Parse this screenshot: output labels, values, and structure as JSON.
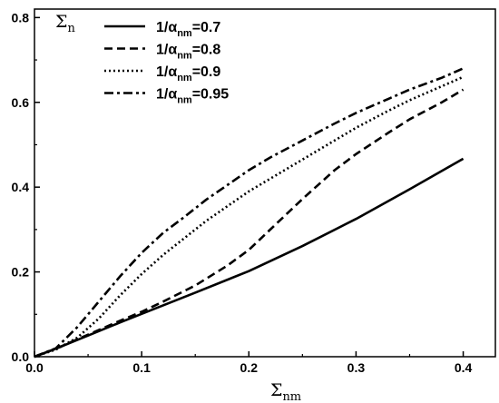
{
  "chart_data": {
    "type": "line",
    "xlabel": {
      "symbol": "Σ",
      "sub": "nm"
    },
    "ylabel": {
      "symbol": "Σ",
      "sub": "n"
    },
    "xlim": [
      0.0,
      0.43
    ],
    "ylim": [
      0.0,
      0.82
    ],
    "xticks": [
      0.0,
      0.1,
      0.2,
      0.3,
      0.4
    ],
    "xtick_labels": [
      "0.0",
      "0.1",
      "0.2",
      "0.3",
      "0.4"
    ],
    "yticks": [
      0.0,
      0.2,
      0.4,
      0.6,
      0.8
    ],
    "ytick_labels": [
      "0.0",
      "0.2",
      "0.4",
      "0.6",
      "0.8"
    ],
    "legend_position": "top-center",
    "series": [
      {
        "name": "1/α_nm=0.7",
        "label": {
          "prefix": "1/α",
          "sub": "nm",
          "suffix": "=0.7"
        },
        "style": "solid",
        "x": [
          0.0,
          0.02,
          0.05,
          0.08,
          0.1,
          0.15,
          0.2,
          0.25,
          0.3,
          0.35,
          0.4
        ],
        "y": [
          0.0,
          0.019,
          0.05,
          0.081,
          0.101,
          0.151,
          0.202,
          0.261,
          0.325,
          0.395,
          0.467
        ]
      },
      {
        "name": "1/α_nm=0.8",
        "label": {
          "prefix": "1/α",
          "sub": "nm",
          "suffix": "=0.8"
        },
        "style": "dashed",
        "x": [
          0.0,
          0.02,
          0.05,
          0.08,
          0.1,
          0.12,
          0.15,
          0.18,
          0.2,
          0.22,
          0.25,
          0.28,
          0.3,
          0.33,
          0.35,
          0.38,
          0.4
        ],
        "y": [
          0.0,
          0.019,
          0.052,
          0.085,
          0.106,
          0.13,
          0.168,
          0.215,
          0.252,
          0.3,
          0.372,
          0.44,
          0.478,
          0.528,
          0.56,
          0.6,
          0.63
        ]
      },
      {
        "name": "1/α_nm=0.9",
        "label": {
          "prefix": "1/α",
          "sub": "nm",
          "suffix": "=0.9"
        },
        "style": "dotted",
        "x": [
          0.0,
          0.02,
          0.04,
          0.06,
          0.08,
          0.1,
          0.12,
          0.14,
          0.16,
          0.18,
          0.2,
          0.22,
          0.25,
          0.28,
          0.3,
          0.33,
          0.35,
          0.38,
          0.4
        ],
        "y": [
          0.0,
          0.017,
          0.045,
          0.09,
          0.145,
          0.195,
          0.24,
          0.28,
          0.32,
          0.355,
          0.39,
          0.42,
          0.465,
          0.51,
          0.54,
          0.58,
          0.605,
          0.638,
          0.66
        ]
      },
      {
        "name": "1/α_nm=0.95",
        "label": {
          "prefix": "1/α",
          "sub": "nm",
          "suffix": "=0.95"
        },
        "style": "dashdot",
        "x": [
          0.0,
          0.02,
          0.04,
          0.06,
          0.08,
          0.1,
          0.12,
          0.14,
          0.16,
          0.18,
          0.2,
          0.22,
          0.25,
          0.28,
          0.3,
          0.33,
          0.35,
          0.38,
          0.4
        ],
        "y": [
          0.0,
          0.02,
          0.07,
          0.13,
          0.19,
          0.245,
          0.292,
          0.33,
          0.37,
          0.405,
          0.44,
          0.47,
          0.51,
          0.55,
          0.575,
          0.608,
          0.63,
          0.658,
          0.68
        ]
      }
    ]
  }
}
